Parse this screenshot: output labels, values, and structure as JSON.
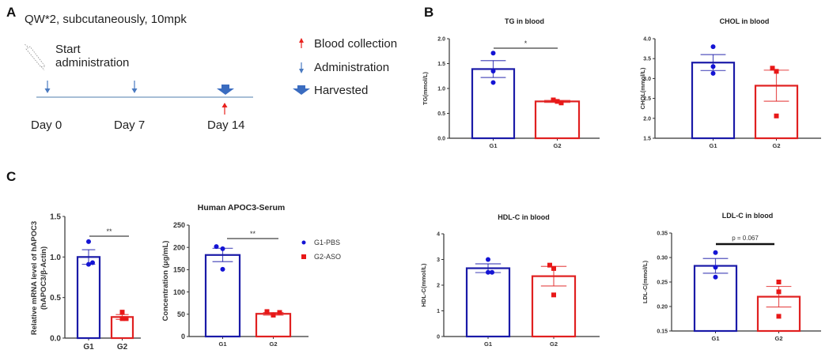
{
  "panels": {
    "A": {
      "letter": "A",
      "protocol": "QW*2, subcutaneously, 10mpk",
      "start_label_1": "Start",
      "start_label_2": "administration",
      "timeline_days": [
        "Day 0",
        "Day 7",
        "Day 14"
      ],
      "legend": [
        {
          "icon": "red-up-arrow",
          "label": "Blood collection",
          "color": "#e8211d"
        },
        {
          "icon": "blue-down-arrow",
          "label": "Administration",
          "color": "#4a7ac0"
        },
        {
          "icon": "blue-block-down-arrow",
          "label": "Harvested",
          "color": "#3a6cc0"
        }
      ]
    },
    "B": {
      "letter": "B"
    },
    "C": {
      "letter": "C"
    }
  },
  "colors": {
    "g1": "#1a1aa8",
    "g1_point": "#1414d4",
    "g2": "#e02020",
    "g2_point": "#e81818",
    "axis": "#333333",
    "timeline": "#8aa8c8"
  },
  "chart_data": [
    {
      "id": "tg",
      "type": "bar",
      "title": "TG in blood",
      "ylabel": "TG(mmol/L)",
      "xlabel": "",
      "categories": [
        "G1",
        "G2"
      ],
      "ylim": [
        0.0,
        2.0
      ],
      "yticks": [
        0.0,
        0.5,
        1.0,
        1.5,
        2.0
      ],
      "ytick_labels": [
        "0.0",
        "0.5",
        "1.0",
        "1.5",
        "2.0"
      ],
      "series": [
        {
          "name": "G1",
          "mean": 1.39,
          "sem": 0.17,
          "points": [
            1.71,
            1.35,
            1.12
          ]
        },
        {
          "name": "G2",
          "mean": 0.74,
          "sem": 0.02,
          "points": [
            0.77,
            0.74,
            0.71
          ]
        }
      ],
      "significance": "*"
    },
    {
      "id": "chol",
      "type": "bar",
      "title": "CHOL in blood",
      "ylabel": "CHOL(mmol/L)",
      "xlabel": "",
      "categories": [
        "G1",
        "G2"
      ],
      "ylim": [
        1.5,
        4.0
      ],
      "yticks": [
        1.5,
        2.0,
        2.5,
        3.0,
        3.5,
        4.0
      ],
      "ytick_labels": [
        "1.5",
        "2.0",
        "2.5",
        "3.0",
        "3.5",
        "4.0"
      ],
      "series": [
        {
          "name": "G1",
          "mean": 3.4,
          "sem": 0.2,
          "points": [
            3.8,
            3.3,
            3.13
          ]
        },
        {
          "name": "G2",
          "mean": 2.82,
          "sem": 0.39,
          "points": [
            3.26,
            3.18,
            2.06
          ]
        }
      ],
      "significance": ""
    },
    {
      "id": "mrna",
      "type": "bar",
      "title": "",
      "ylabel": "Relative mRNA level of hAPOC3 (hAPOC3/β-Actin)",
      "xlabel": "",
      "categories": [
        "G1",
        "G2"
      ],
      "ylim": [
        0.0,
        1.5
      ],
      "yticks": [
        0.0,
        0.5,
        1.0,
        1.5
      ],
      "ytick_labels": [
        "0.0",
        "0.5",
        "1.0",
        "1.5"
      ],
      "series": [
        {
          "name": "G1",
          "mean": 1.0,
          "sem": 0.09,
          "points": [
            1.19,
            0.91,
            0.93
          ]
        },
        {
          "name": "G2",
          "mean": 0.26,
          "sem": 0.03,
          "points": [
            0.32,
            0.24,
            0.24
          ]
        }
      ],
      "significance": "**"
    },
    {
      "id": "apoc3",
      "type": "bar",
      "title": "Human APOC3-Serum",
      "ylabel": "Concentration (μg/mL)",
      "xlabel": "",
      "categories": [
        "G1",
        "G2"
      ],
      "ylim": [
        0,
        250
      ],
      "yticks": [
        0,
        50,
        100,
        150,
        200,
        250
      ],
      "ytick_labels": [
        "0",
        "50",
        "100",
        "150",
        "200",
        "250"
      ],
      "series": [
        {
          "name": "G1",
          "mean": 183,
          "sem": 15,
          "points": [
            202,
            197,
            151
          ]
        },
        {
          "name": "G2",
          "mean": 51,
          "sem": 3,
          "points": [
            56,
            48,
            54
          ]
        }
      ],
      "significance": "**",
      "legend": [
        {
          "label": "G1-PBS",
          "marker": "circle"
        },
        {
          "label": "G2-ASO",
          "marker": "square"
        }
      ]
    },
    {
      "id": "hdl",
      "type": "bar",
      "title": "HDL-C in blood",
      "ylabel": "HDL-C(mmol/L)",
      "xlabel": "",
      "categories": [
        "G1",
        "G2"
      ],
      "ylim": [
        0,
        4
      ],
      "yticks": [
        0,
        1,
        2,
        3,
        4
      ],
      "ytick_labels": [
        "0",
        "1",
        "2",
        "3",
        "4"
      ],
      "series": [
        {
          "name": "G1",
          "mean": 2.66,
          "sem": 0.17,
          "points": [
            3.0,
            2.5,
            2.5
          ]
        },
        {
          "name": "G2",
          "mean": 2.35,
          "sem": 0.38,
          "points": [
            2.78,
            2.65,
            1.62
          ]
        }
      ],
      "significance": ""
    },
    {
      "id": "ldl",
      "type": "bar",
      "title": "LDL-C in blood",
      "ylabel": "LDL-C(mmol/L)",
      "xlabel": "",
      "categories": [
        "G1",
        "G2"
      ],
      "ylim": [
        0.15,
        0.35
      ],
      "yticks": [
        0.15,
        0.2,
        0.25,
        0.3,
        0.35
      ],
      "ytick_labels": [
        "0.15",
        "0.20",
        "0.25",
        "0.30",
        "0.35"
      ],
      "series": [
        {
          "name": "G1",
          "mean": 0.283,
          "sem": 0.015,
          "points": [
            0.31,
            0.28,
            0.26
          ]
        },
        {
          "name": "G2",
          "mean": 0.22,
          "sem": 0.021,
          "points": [
            0.25,
            0.23,
            0.18
          ]
        }
      ],
      "significance": "p = 0.067"
    }
  ]
}
